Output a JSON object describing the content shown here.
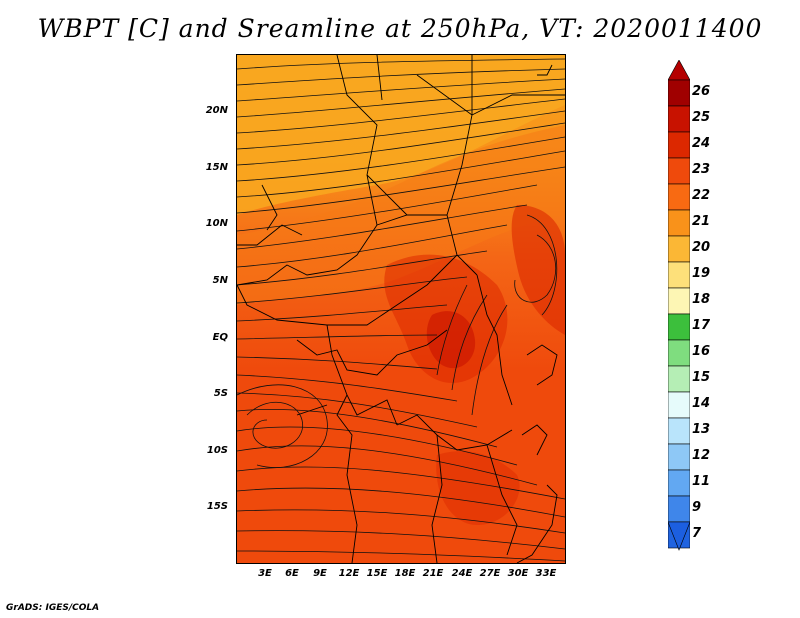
{
  "title": "WBPT [C] and Sreamline at 250hPa, VT: 2020011400",
  "footer": "GrADS: IGES/COLA",
  "axes": {
    "lat_labels": [
      "20N",
      "15N",
      "10N",
      "5N",
      "EQ",
      "5S",
      "10S",
      "15S"
    ],
    "lon_labels": [
      "3E",
      "6E",
      "9E",
      "12E",
      "15E",
      "18E",
      "21E",
      "24E",
      "27E",
      "30E",
      "33E"
    ]
  },
  "colorbar": {
    "levels": [
      "26",
      "25",
      "24",
      "23",
      "22",
      "21",
      "20",
      "19",
      "18",
      "17",
      "16",
      "15",
      "14",
      "13",
      "12",
      "11",
      "9",
      "7"
    ],
    "colors": [
      "#a00000",
      "#c81200",
      "#dc2800",
      "#ef4a0c",
      "#f86a12",
      "#f9921a",
      "#fbb735",
      "#fde07a",
      "#fdf6b4",
      "#3cbf3c",
      "#7fdd7f",
      "#b5eeb5",
      "#e6fbfb",
      "#b9e4fb",
      "#8ec8f6",
      "#62a8f2",
      "#3f86ea",
      "#1f63e0"
    ]
  },
  "colors": {
    "max_arrow": "#b40000",
    "min_arrow": "#1c5fe0"
  }
}
